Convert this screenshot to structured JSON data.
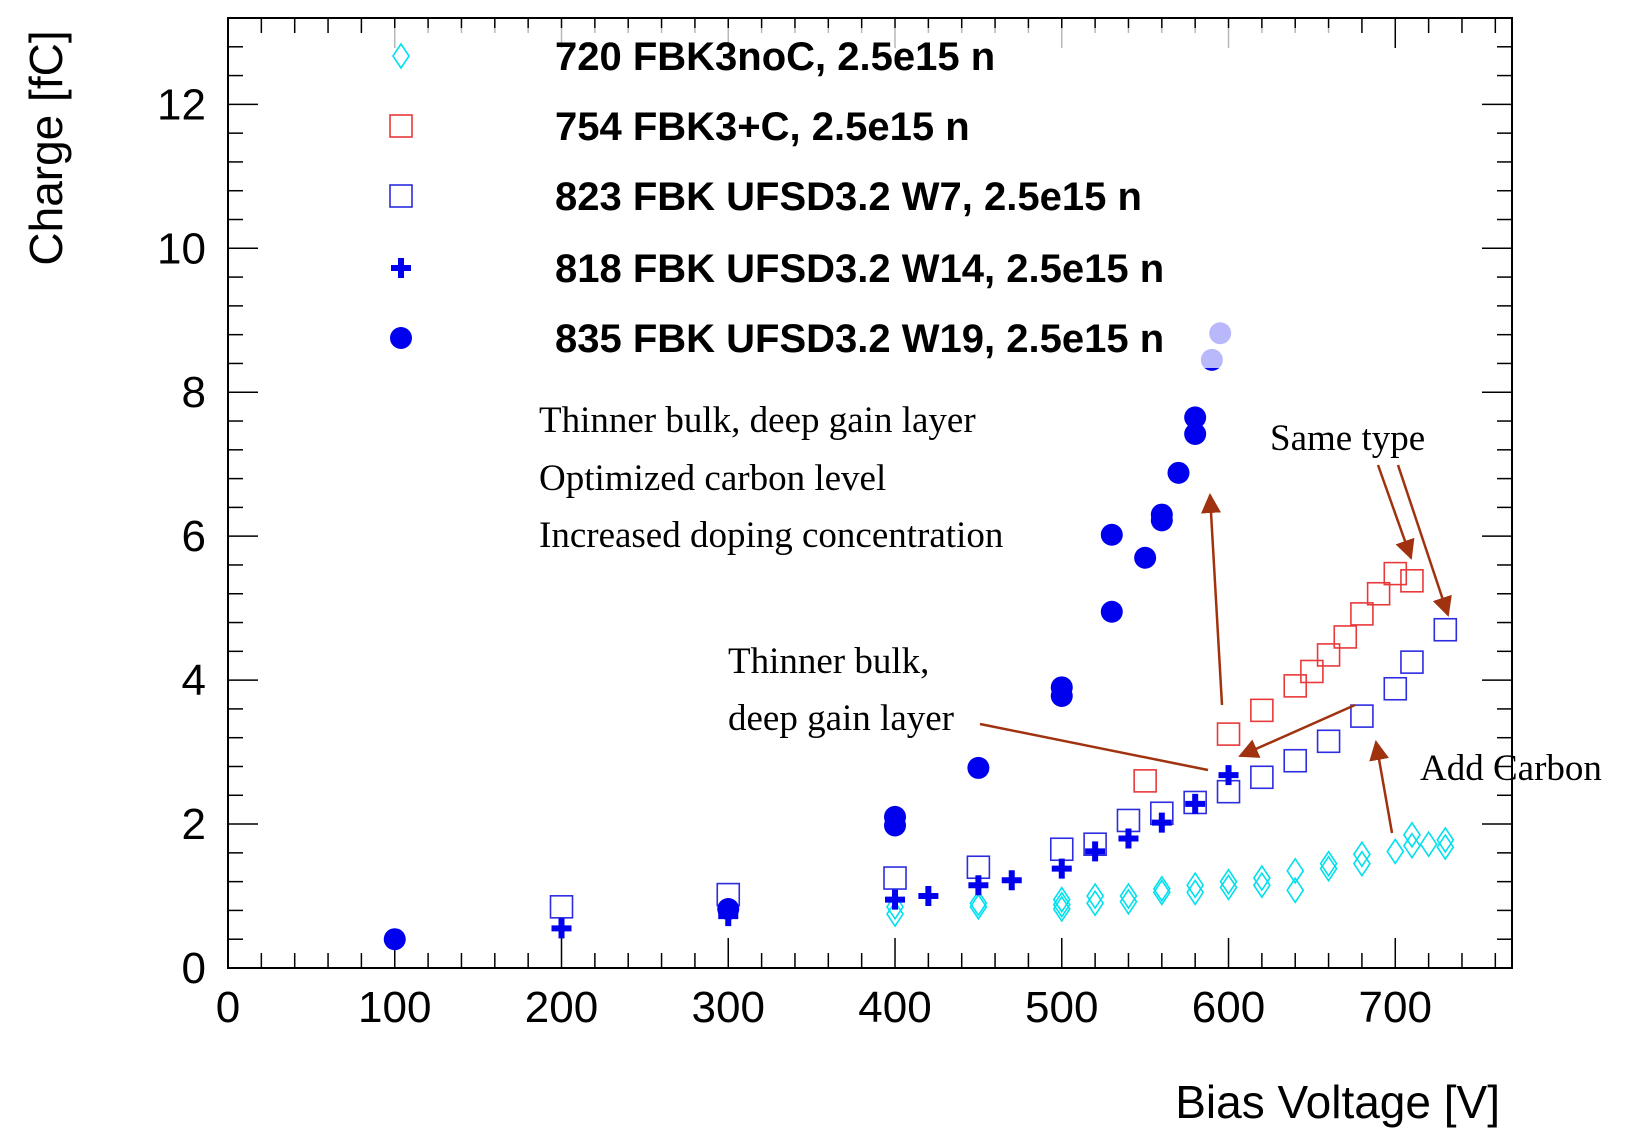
{
  "chart_data": {
    "type": "scatter",
    "xlabel": "Bias Voltage [V]",
    "ylabel": "Charge [fC]",
    "xlim": [
      0,
      770
    ],
    "ylim": [
      0,
      13.2
    ],
    "x_ticks": [
      0,
      100,
      200,
      300,
      400,
      500,
      600,
      700
    ],
    "y_ticks": [
      0,
      2,
      4,
      6,
      8,
      10,
      12
    ],
    "grid": false,
    "legend_position": "top",
    "series": [
      {
        "name": "720 FBK3noC, 2.5e15 n",
        "marker": "open-diamond",
        "color": "#00e0ee",
        "x": [
          400,
          400,
          450,
          450,
          500,
          500,
          500,
          520,
          520,
          540,
          540,
          560,
          560,
          580,
          580,
          600,
          600,
          620,
          620,
          640,
          640,
          660,
          660,
          680,
          680,
          700,
          710,
          710,
          720,
          730,
          730
        ],
        "y": [
          0.85,
          0.75,
          0.9,
          0.85,
          0.95,
          0.88,
          0.82,
          1.0,
          0.9,
          1.0,
          0.92,
          1.1,
          1.05,
          1.15,
          1.05,
          1.2,
          1.12,
          1.25,
          1.15,
          1.35,
          1.08,
          1.45,
          1.38,
          1.58,
          1.45,
          1.62,
          1.85,
          1.7,
          1.72,
          1.78,
          1.68
        ]
      },
      {
        "name": "754 FBK3+C, 2.5e15 n",
        "marker": "open-square",
        "color": "#e8393b",
        "x": [
          550,
          600,
          620,
          640,
          650,
          660,
          670,
          680,
          690,
          700,
          710
        ],
        "y": [
          2.6,
          3.25,
          3.58,
          3.92,
          4.12,
          4.35,
          4.6,
          4.92,
          5.2,
          5.48,
          5.38
        ]
      },
      {
        "name": "823 FBK UFSD3.2 W7, 2.5e15 n",
        "marker": "open-square",
        "color": "#2c2ce0",
        "x": [
          200,
          300,
          400,
          450,
          500,
          520,
          540,
          560,
          580,
          600,
          620,
          640,
          660,
          680,
          700,
          710,
          730
        ],
        "y": [
          0.85,
          1.02,
          1.25,
          1.4,
          1.65,
          1.72,
          2.05,
          2.15,
          2.3,
          2.45,
          2.65,
          2.88,
          3.15,
          3.5,
          3.88,
          4.25,
          4.7
        ]
      },
      {
        "name": "818 FBK UFSD3.2 W14, 2.5e15 n",
        "marker": "cross",
        "color": "#0000ee",
        "x": [
          200,
          300,
          400,
          420,
          450,
          470,
          500,
          520,
          540,
          560,
          580,
          600
        ],
        "y": [
          0.55,
          0.72,
          0.95,
          1.0,
          1.15,
          1.22,
          1.38,
          1.62,
          1.8,
          2.02,
          2.28,
          2.68
        ]
      },
      {
        "name": "835 FBK UFSD3.2 W19, 2.5e15 n",
        "marker": "filled-circle",
        "color": "#0000ee",
        "x": [
          100,
          300,
          400,
          400,
          450,
          500,
          500,
          530,
          530,
          550,
          560,
          560,
          570,
          580,
          580,
          590,
          595
        ],
        "y": [
          0.4,
          0.82,
          2.1,
          1.98,
          2.78,
          3.9,
          3.78,
          6.02,
          4.95,
          5.7,
          6.3,
          6.22,
          6.88,
          7.65,
          7.42,
          8.45,
          8.82
        ]
      }
    ],
    "annotations": [
      "Thinner bulk, deep gain layer",
      "Optimized carbon level",
      "Increased doping concentration",
      "Same type",
      "Thinner bulk,",
      "deep gain layer",
      "Add Carbon"
    ],
    "annotation_color": "#a0320f"
  }
}
